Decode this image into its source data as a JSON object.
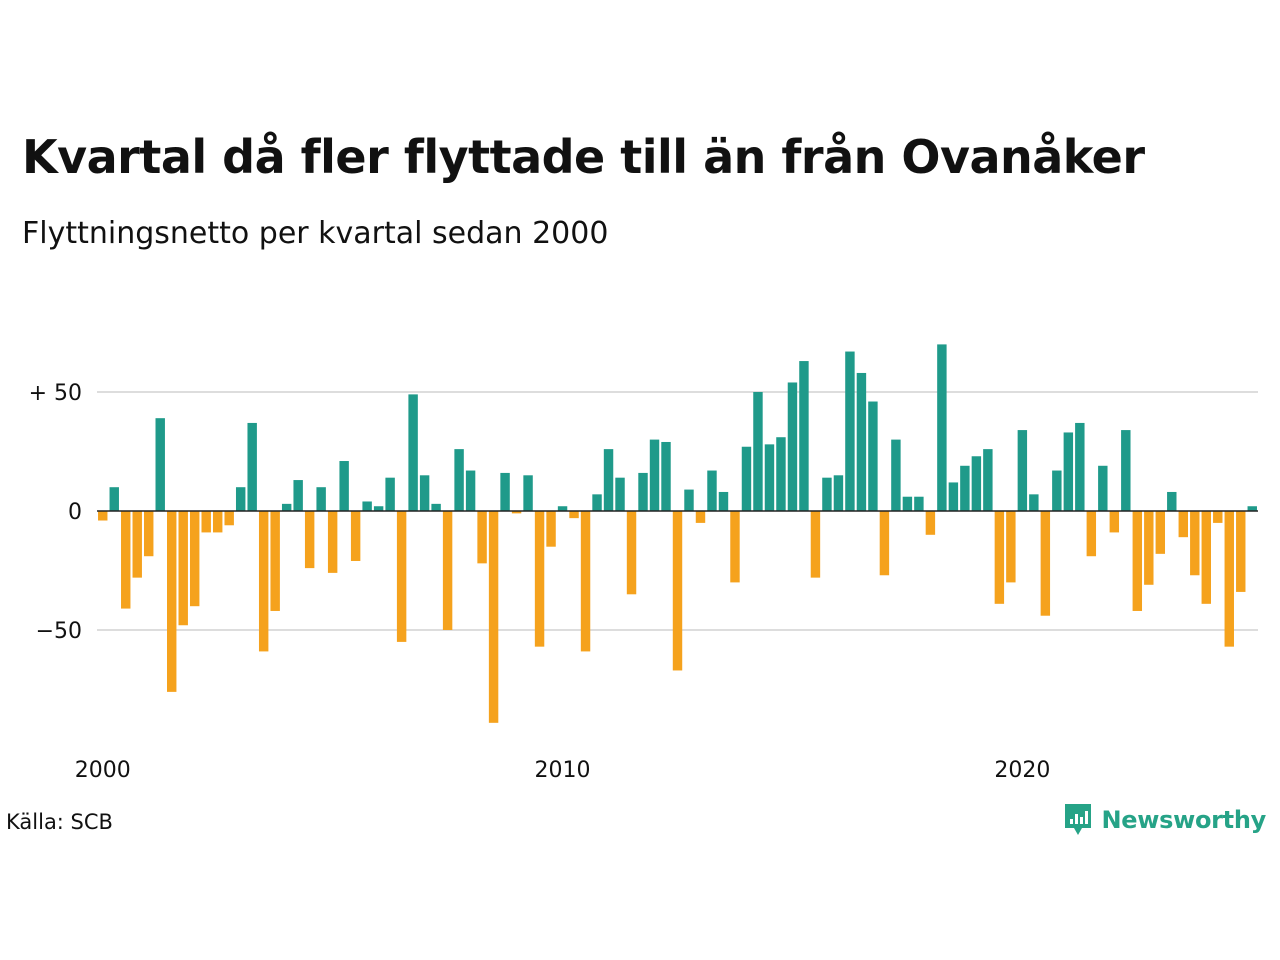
{
  "title": "Kvartal då fler flyttade till än från Ovanåker",
  "subtitle": "Flyttningsnetto per kvartal sedan 2000",
  "source": "Källa: SCB",
  "brand": "Newsworthy",
  "colors": {
    "positive": "#1f9a8a",
    "negative": "#f5a21d",
    "grid": "#dddddd",
    "zero": "#222222",
    "brand": "#26a387"
  },
  "chart_data": {
    "type": "bar",
    "xlabel": "",
    "ylabel": "",
    "ylim": [
      -92,
      75
    ],
    "yticks": [
      {
        "value": 50,
        "label": "+ 50"
      },
      {
        "value": 0,
        "label": "0"
      },
      {
        "value": -50,
        "label": "−50"
      }
    ],
    "xticks": [
      {
        "index": 0,
        "label": "2000"
      },
      {
        "index": 40,
        "label": "2010"
      },
      {
        "index": 80,
        "label": "2020"
      }
    ],
    "grid": true,
    "categories": [
      "2000Q1",
      "2000Q2",
      "2000Q3",
      "2000Q4",
      "2001Q1",
      "2001Q2",
      "2001Q3",
      "2001Q4",
      "2002Q1",
      "2002Q2",
      "2002Q3",
      "2002Q4",
      "2003Q1",
      "2003Q2",
      "2003Q3",
      "2003Q4",
      "2004Q1",
      "2004Q2",
      "2004Q3",
      "2004Q4",
      "2005Q1",
      "2005Q2",
      "2005Q3",
      "2005Q4",
      "2006Q1",
      "2006Q2",
      "2006Q3",
      "2006Q4",
      "2007Q1",
      "2007Q2",
      "2007Q3",
      "2007Q4",
      "2008Q1",
      "2008Q2",
      "2008Q3",
      "2008Q4",
      "2009Q1",
      "2009Q2",
      "2009Q3",
      "2009Q4",
      "2010Q1",
      "2010Q2",
      "2010Q3",
      "2010Q4",
      "2011Q1",
      "2011Q2",
      "2011Q3",
      "2011Q4",
      "2012Q1",
      "2012Q2",
      "2012Q3",
      "2012Q4",
      "2013Q1",
      "2013Q2",
      "2013Q3",
      "2013Q4",
      "2014Q1",
      "2014Q2",
      "2014Q3",
      "2014Q4",
      "2015Q1",
      "2015Q2",
      "2015Q3",
      "2015Q4",
      "2016Q1",
      "2016Q2",
      "2016Q3",
      "2016Q4",
      "2017Q1",
      "2017Q2",
      "2017Q3",
      "2017Q4",
      "2018Q1",
      "2018Q2",
      "2018Q3",
      "2018Q4",
      "2019Q1",
      "2019Q2",
      "2019Q3",
      "2019Q4",
      "2020Q1",
      "2020Q2",
      "2020Q3",
      "2020Q4",
      "2021Q1",
      "2021Q2",
      "2021Q3",
      "2021Q4",
      "2022Q1",
      "2022Q2",
      "2022Q3",
      "2022Q4",
      "2023Q1",
      "2023Q2",
      "2023Q3",
      "2023Q4",
      "2024Q1",
      "2024Q2",
      "2024Q3",
      "2024Q4",
      "2025Q1"
    ],
    "values": [
      -4,
      10,
      -41,
      -28,
      -19,
      39,
      -76,
      -48,
      -40,
      -9,
      -9,
      -6,
      10,
      37,
      -59,
      -42,
      3,
      13,
      -24,
      10,
      -26,
      21,
      -21,
      4,
      2,
      14,
      -55,
      49,
      15,
      3,
      -50,
      26,
      17,
      -22,
      -89,
      16,
      -1,
      15,
      -57,
      -15,
      2,
      -3,
      -59,
      7,
      26,
      14,
      -35,
      16,
      30,
      29,
      -67,
      9,
      -5,
      17,
      8,
      -30,
      27,
      50,
      28,
      31,
      54,
      63,
      -28,
      14,
      15,
      67,
      58,
      46,
      -27,
      30,
      6,
      6,
      -10,
      70,
      12,
      19,
      23,
      26,
      -39,
      -30,
      34,
      7,
      -44,
      17,
      33,
      37,
      -19,
      19,
      -9,
      34,
      -42,
      -31,
      -18,
      8,
      -11,
      -27,
      -39,
      -5,
      -57,
      -34,
      2
    ]
  }
}
